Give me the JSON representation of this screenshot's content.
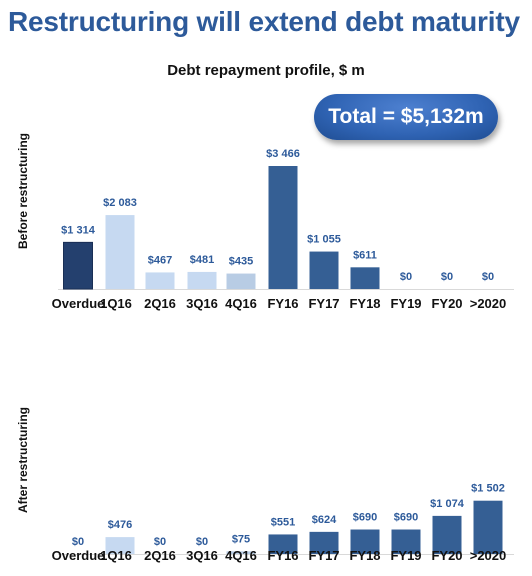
{
  "title": "Restructuring will extend debt maturity",
  "subtitle": "Debt repayment profile, $ m",
  "total_badge": "Total = $5,132m",
  "colors": {
    "title": "#2d5a9a",
    "value_label": "#2d5a9a",
    "overdue": "#24406e",
    "light_blue": "#c6d9f1",
    "steel_blue": "#b8cce4",
    "dark_blue": "#355f94",
    "badge": "#2f63b3"
  },
  "chart_data": [
    {
      "type": "bar",
      "vertical_label": "Before restructuring",
      "categories": [
        "Overdue",
        "1Q16",
        "2Q16",
        "3Q16",
        "4Q16",
        "FY16",
        "FY17",
        "FY18",
        "FY19",
        "FY20",
        ">2020"
      ],
      "values": [
        1314,
        2083,
        467,
        481,
        435,
        3466,
        1055,
        611,
        0,
        0,
        0
      ],
      "value_labels": [
        "$1 314",
        "$2 083",
        "$467",
        "$481",
        "$435",
        "$3 466",
        "$1 055",
        "$611",
        "$0",
        "$0",
        "$0"
      ],
      "bar_colors": [
        "overdue",
        "light_blue",
        "light_blue",
        "light_blue",
        "steel_blue",
        "dark_blue",
        "dark_blue",
        "dark_blue",
        "dark_blue",
        "dark_blue",
        "dark_blue"
      ],
      "ylim": [
        0,
        3466
      ]
    },
    {
      "type": "bar",
      "vertical_label": "After restructuring",
      "categories": [
        "Overdue",
        "1Q16",
        "2Q16",
        "3Q16",
        "4Q16",
        "FY16",
        "FY17",
        "FY18",
        "FY19",
        "FY20",
        ">2020"
      ],
      "values": [
        0,
        476,
        0,
        0,
        75,
        551,
        624,
        690,
        690,
        1074,
        1502
      ],
      "value_labels": [
        "$0",
        "$476",
        "$0",
        "$0",
        "$75",
        "$551",
        "$624",
        "$690",
        "$690",
        "$1 074",
        "$1 502"
      ],
      "bar_colors": [
        "overdue",
        "light_blue",
        "light_blue",
        "light_blue",
        "steel_blue",
        "dark_blue",
        "dark_blue",
        "dark_blue",
        "dark_blue",
        "dark_blue",
        "dark_blue"
      ],
      "ylim": [
        0,
        3466
      ]
    }
  ]
}
